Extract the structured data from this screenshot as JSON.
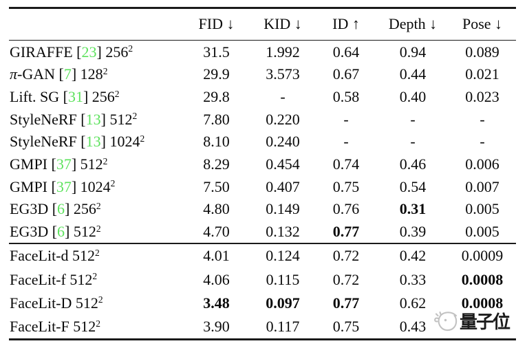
{
  "colors": {
    "background": "#ffffff",
    "text": "#0a0a0a",
    "rule": "#1a1a1a",
    "cite_green": "#5de25d",
    "watermark_gray": "#c2c2c2"
  },
  "table": {
    "columns": [
      "FID ↓",
      "KID ↓",
      "ID ↑",
      "Depth ↓",
      "Pose ↓"
    ],
    "groups": [
      {
        "rows": [
          {
            "method": [
              {
                "t": "GIRAFFE ["
              },
              {
                "t": "23",
                "green": true
              },
              {
                "t": "] 256"
              },
              {
                "t": "2",
                "sup": true
              }
            ],
            "cells": [
              {
                "v": "31.5"
              },
              {
                "v": "1.992"
              },
              {
                "v": "0.64"
              },
              {
                "v": "0.94"
              },
              {
                "v": "0.089"
              }
            ]
          },
          {
            "method": [
              {
                "t": "π",
                "it": true
              },
              {
                "t": "-GAN ["
              },
              {
                "t": "7",
                "green": true
              },
              {
                "t": "] 128"
              },
              {
                "t": "2",
                "sup": true
              }
            ],
            "cells": [
              {
                "v": "29.9"
              },
              {
                "v": "3.573"
              },
              {
                "v": "0.67"
              },
              {
                "v": "0.44"
              },
              {
                "v": "0.021"
              }
            ]
          },
          {
            "method": [
              {
                "t": "Lift. SG ["
              },
              {
                "t": "31",
                "green": true
              },
              {
                "t": "] 256"
              },
              {
                "t": "2",
                "sup": true
              }
            ],
            "cells": [
              {
                "v": "29.8"
              },
              {
                "v": "-"
              },
              {
                "v": "0.58"
              },
              {
                "v": "0.40"
              },
              {
                "v": "0.023"
              }
            ]
          },
          {
            "method": [
              {
                "t": "StyleNeRF ["
              },
              {
                "t": "13",
                "green": true
              },
              {
                "t": "] 512"
              },
              {
                "t": "2",
                "sup": true
              }
            ],
            "cells": [
              {
                "v": "7.80"
              },
              {
                "v": "0.220"
              },
              {
                "v": "-"
              },
              {
                "v": "-"
              },
              {
                "v": "-"
              }
            ]
          },
          {
            "method": [
              {
                "t": "StyleNeRF ["
              },
              {
                "t": "13",
                "green": true
              },
              {
                "t": "] 1024"
              },
              {
                "t": "2",
                "sup": true
              }
            ],
            "cells": [
              {
                "v": "8.10"
              },
              {
                "v": "0.240"
              },
              {
                "v": "-"
              },
              {
                "v": "-"
              },
              {
                "v": "-"
              }
            ]
          },
          {
            "method": [
              {
                "t": "GMPI ["
              },
              {
                "t": "37",
                "green": true
              },
              {
                "t": "] 512"
              },
              {
                "t": "2",
                "sup": true
              }
            ],
            "cells": [
              {
                "v": "8.29"
              },
              {
                "v": "0.454"
              },
              {
                "v": "0.74"
              },
              {
                "v": "0.46"
              },
              {
                "v": "0.006"
              }
            ]
          },
          {
            "method": [
              {
                "t": "GMPI ["
              },
              {
                "t": "37",
                "green": true
              },
              {
                "t": "] 1024"
              },
              {
                "t": "2",
                "sup": true
              }
            ],
            "cells": [
              {
                "v": "7.50"
              },
              {
                "v": "0.407"
              },
              {
                "v": "0.75"
              },
              {
                "v": "0.54"
              },
              {
                "v": "0.007"
              }
            ]
          },
          {
            "method": [
              {
                "t": "EG3D ["
              },
              {
                "t": "6",
                "green": true
              },
              {
                "t": "] 256"
              },
              {
                "t": "2",
                "sup": true
              }
            ],
            "cells": [
              {
                "v": "4.80"
              },
              {
                "v": "0.149"
              },
              {
                "v": "0.76"
              },
              {
                "v": "0.31",
                "b": true
              },
              {
                "v": "0.005"
              }
            ]
          },
          {
            "method": [
              {
                "t": "EG3D ["
              },
              {
                "t": "6",
                "green": true
              },
              {
                "t": "] 512"
              },
              {
                "t": "2",
                "sup": true
              }
            ],
            "cells": [
              {
                "v": "4.70"
              },
              {
                "v": "0.132"
              },
              {
                "v": "0.77",
                "b": true
              },
              {
                "v": "0.39"
              },
              {
                "v": "0.005"
              }
            ]
          }
        ]
      },
      {
        "rows": [
          {
            "method": [
              {
                "t": "FaceLit-d 512"
              },
              {
                "t": "2",
                "sup": true
              }
            ],
            "cells": [
              {
                "v": "4.01"
              },
              {
                "v": "0.124"
              },
              {
                "v": "0.72"
              },
              {
                "v": "0.42"
              },
              {
                "v": "0.0009"
              }
            ]
          },
          {
            "method": [
              {
                "t": "FaceLit-f 512"
              },
              {
                "t": "2",
                "sup": true
              }
            ],
            "cells": [
              {
                "v": "4.06"
              },
              {
                "v": "0.115"
              },
              {
                "v": "0.72"
              },
              {
                "v": "0.33"
              },
              {
                "v": "0.0008",
                "b": true
              }
            ]
          },
          {
            "method": [
              {
                "t": "FaceLit-D 512"
              },
              {
                "t": "2",
                "sup": true
              }
            ],
            "cells": [
              {
                "v": "3.48",
                "b": true
              },
              {
                "v": "0.097",
                "b": true
              },
              {
                "v": "0.77",
                "b": true
              },
              {
                "v": "0.62"
              },
              {
                "v": "0.0008",
                "b": true
              }
            ]
          },
          {
            "method": [
              {
                "t": "FaceLit-F 512"
              },
              {
                "t": "2",
                "sup": true
              }
            ],
            "cells": [
              {
                "v": "3.90"
              },
              {
                "v": "0.117"
              },
              {
                "v": "0.75"
              },
              {
                "v": "0.43"
              },
              {
                "v": "",
                "watermark": true
              }
            ]
          }
        ]
      }
    ]
  },
  "watermark": {
    "icon": "doodle-face-icon",
    "text": "量子位"
  }
}
